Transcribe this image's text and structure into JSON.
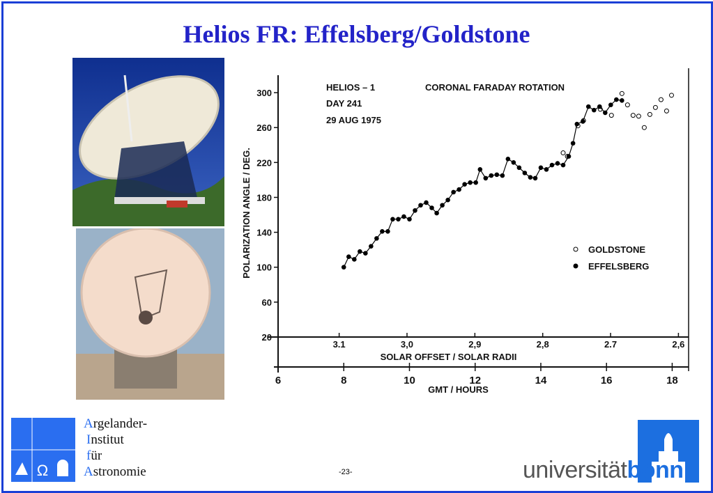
{
  "slide_title": "Helios FR: Effelsberg/Goldstone",
  "page_number": "-23-",
  "institute_logo": {
    "lines": [
      "Argelander-",
      "Institut",
      "für",
      "Astronomie"
    ]
  },
  "university_logo": {
    "parts": [
      "universität",
      "bonn"
    ]
  },
  "chart_data": {
    "type": "scatter",
    "annotations": [
      "HELIOS – 1",
      "CORONAL  FARADAY  ROTATION",
      "DAY  241",
      "29  AUG  1975"
    ],
    "y_label": "POLARIZATION  ANGLE  /  DEG.",
    "x_label": "GMT  /  HOURS",
    "x2_label": "SOLAR  OFFSET  /  SOLAR  RADII",
    "xlim": [
      6,
      18.5
    ],
    "xticks": [
      6,
      8,
      10,
      12,
      14,
      16,
      18
    ],
    "x2lim": [
      3.19,
      2.585
    ],
    "x2ticks": [
      {
        "value": 3.1,
        "label": "3.1"
      },
      {
        "value": 3.0,
        "label": "3,0"
      },
      {
        "value": 2.9,
        "label": "2,9"
      },
      {
        "value": 2.8,
        "label": "2,8"
      },
      {
        "value": 2.7,
        "label": "2.7"
      },
      {
        "value": 2.6,
        "label": "2,6"
      }
    ],
    "ylim": [
      20,
      320
    ],
    "yticks": [
      20,
      60,
      100,
      140,
      180,
      220,
      260,
      300
    ],
    "legend": "right",
    "series": [
      {
        "name": "GOLDSTONE",
        "color": "#000000",
        "marker": "open",
        "line": false,
        "x": [
          14.68,
          14.81,
          15.13,
          15.3,
          15.81,
          16.15,
          16.47,
          16.64,
          16.81,
          16.98,
          17.15,
          17.32,
          17.49,
          17.66,
          17.83,
          17.98
        ],
        "values": [
          231,
          227,
          262,
          268,
          281,
          274,
          299,
          286,
          274,
          273,
          260,
          275,
          283,
          292,
          279,
          297
        ]
      },
      {
        "name": "EFFELSBERG",
        "color": "#000000",
        "marker": "filled",
        "line": true,
        "x": [
          8.0,
          8.15,
          8.32,
          8.49,
          8.66,
          8.83,
          9.0,
          9.17,
          9.34,
          9.49,
          9.66,
          9.83,
          10.0,
          10.17,
          10.34,
          10.51,
          10.68,
          10.83,
          11.0,
          11.17,
          11.34,
          11.51,
          11.68,
          11.85,
          12.02,
          12.15,
          12.32,
          12.49,
          12.66,
          12.83,
          13.0,
          13.17,
          13.34,
          13.51,
          13.68,
          13.83,
          14.0,
          14.17,
          14.34,
          14.51,
          14.68,
          14.85,
          14.98,
          15.1,
          15.28,
          15.45,
          15.62,
          15.79,
          15.96,
          16.13,
          16.3,
          16.47
        ],
        "values": [
          100,
          112,
          109,
          118,
          116,
          124,
          133,
          141,
          141,
          155,
          155,
          158,
          155,
          165,
          171,
          174,
          168,
          162,
          171,
          177,
          186,
          189,
          195,
          197,
          197,
          212,
          202,
          205,
          206,
          205,
          224,
          220,
          214,
          208,
          203,
          202,
          214,
          212,
          217,
          219,
          217,
          227,
          242,
          264,
          267,
          284,
          280,
          284,
          277,
          286,
          292,
          291
        ]
      }
    ]
  }
}
